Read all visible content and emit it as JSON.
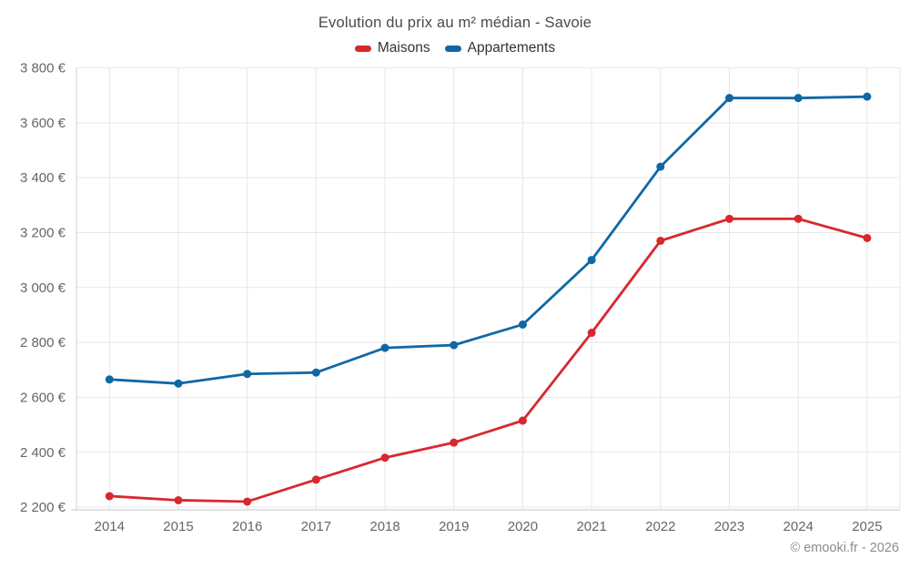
{
  "chart": {
    "title": "Evolution du prix au m² médian - Savoie",
    "legend": [
      {
        "label": "Maisons",
        "color": "#d7282e"
      },
      {
        "label": "Appartements",
        "color": "#0f68a5"
      }
    ],
    "footer": {
      "copyright": "© emooki.fr - 2026"
    }
  },
  "chart_data": {
    "type": "line",
    "title": "Evolution du prix au m² médian - Savoie",
    "x": [
      2014,
      2015,
      2016,
      2017,
      2018,
      2019,
      2020,
      2021,
      2022,
      2023,
      2024,
      2025
    ],
    "x_tick_labels": [
      "2014",
      "2015",
      "2016",
      "2017",
      "2018",
      "2019",
      "2020",
      "2021",
      "2022",
      "2023",
      "2024",
      "2025"
    ],
    "series": [
      {
        "name": "Maisons",
        "color": "#d7282e",
        "values": [
          2240,
          2225,
          2220,
          2300,
          2380,
          2435,
          2515,
          2835,
          3170,
          3250,
          3250,
          3180
        ]
      },
      {
        "name": "Appartements",
        "color": "#0f68a5",
        "values": [
          2665,
          2650,
          2685,
          2690,
          2780,
          2790,
          2865,
          3100,
          3440,
          3690,
          3690,
          3695
        ]
      }
    ],
    "xlabel": "",
    "ylabel": "",
    "ylim": [
      2200,
      3800
    ],
    "y_tick_step": 200,
    "y_tick_labels": [
      "2 200 €",
      "2 400 €",
      "2 600 €",
      "2 800 €",
      "3 000 €",
      "3 200 €",
      "3 400 €",
      "3 600 €",
      "3 800 €"
    ],
    "grid": true,
    "legend_position": "top",
    "colors": {
      "gridline": "#e7e7e7",
      "axis_line": "#d2d2d2",
      "bottom_axis": "#c6c6c6",
      "tick_text": "#666666",
      "title_text": "#4a4a4a",
      "legend_text": "#333333",
      "copyright_text": "#8c8c8c"
    }
  }
}
